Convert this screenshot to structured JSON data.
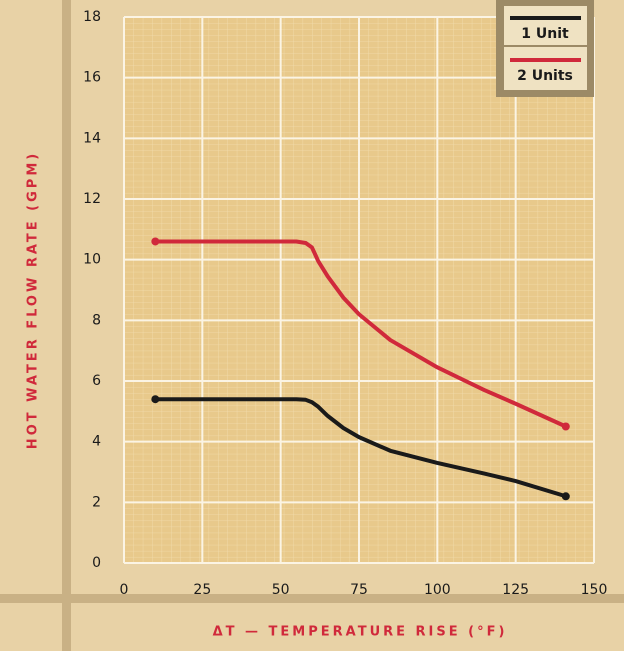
{
  "chart_data": {
    "type": "line",
    "xlabel": "ΔT — TEMPERATURE RISE (°F)",
    "ylabel": "HOT WATER FLOW RATE (GPM)",
    "xlim": [
      0,
      150
    ],
    "xticks": [
      0,
      25,
      50,
      75,
      100,
      125,
      150
    ],
    "ylim": [
      0,
      18
    ],
    "yticks": [
      0,
      2,
      4,
      6,
      8,
      10,
      12,
      14,
      16,
      18
    ],
    "grid": true,
    "legend": "upper right",
    "series": [
      {
        "name": "1 Unit",
        "color": "#1a1a1a",
        "x": [
          10,
          55,
          58,
          60,
          62,
          65,
          70,
          75,
          85,
          100,
          115,
          125,
          141
        ],
        "values": [
          5.4,
          5.4,
          5.38,
          5.3,
          5.15,
          4.85,
          4.45,
          4.15,
          3.7,
          3.3,
          2.95,
          2.7,
          2.2
        ]
      },
      {
        "name": "2 Units",
        "color": "#d0293b",
        "x": [
          10,
          55,
          58,
          60,
          62,
          65,
          70,
          75,
          85,
          100,
          115,
          125,
          141
        ],
        "values": [
          10.6,
          10.6,
          10.55,
          10.4,
          9.95,
          9.45,
          8.75,
          8.2,
          7.35,
          6.45,
          5.7,
          5.25,
          4.5
        ]
      }
    ]
  }
}
